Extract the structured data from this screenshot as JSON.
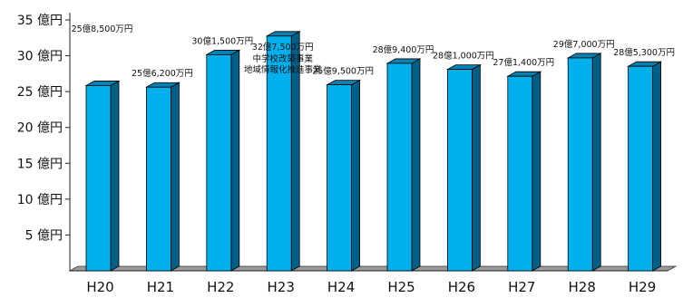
{
  "chart_data": {
    "type": "bar",
    "categories": [
      "H20",
      "H21",
      "H22",
      "H23",
      "H24",
      "H25",
      "H26",
      "H27",
      "H28",
      "H29"
    ],
    "values": [
      25.85,
      25.62,
      30.15,
      32.75,
      25.95,
      28.94,
      28.1,
      27.14,
      29.7,
      28.53
    ],
    "data_labels": [
      "25億8,500万円",
      "25億6,200万円",
      "30億1,500万円",
      "32億7,500万円",
      "25億9,500万円",
      "28億9,400万円",
      "28億1,000万円",
      "27億1,400万円",
      "29億7,000万円",
      "28億5,300万円"
    ],
    "annotation_lines": [
      "中学校改築事業",
      "地域情報化推進事業"
    ],
    "annotation_category": "H23",
    "y_ticks": [
      5,
      10,
      15,
      20,
      25,
      30,
      35
    ],
    "y_tick_labels": [
      "5 億円",
      "10 億円",
      "15 億円",
      "20 億円",
      "25 億円",
      "30 億円",
      "35 億円"
    ],
    "ylim": [
      0,
      35
    ],
    "grid": false,
    "colors": {
      "bar_front": "#00b0ec",
      "bar_side": "#005f86",
      "bar_top": "#0a7fb0",
      "outline": "#000000",
      "floor": "#9a9a9a"
    }
  }
}
